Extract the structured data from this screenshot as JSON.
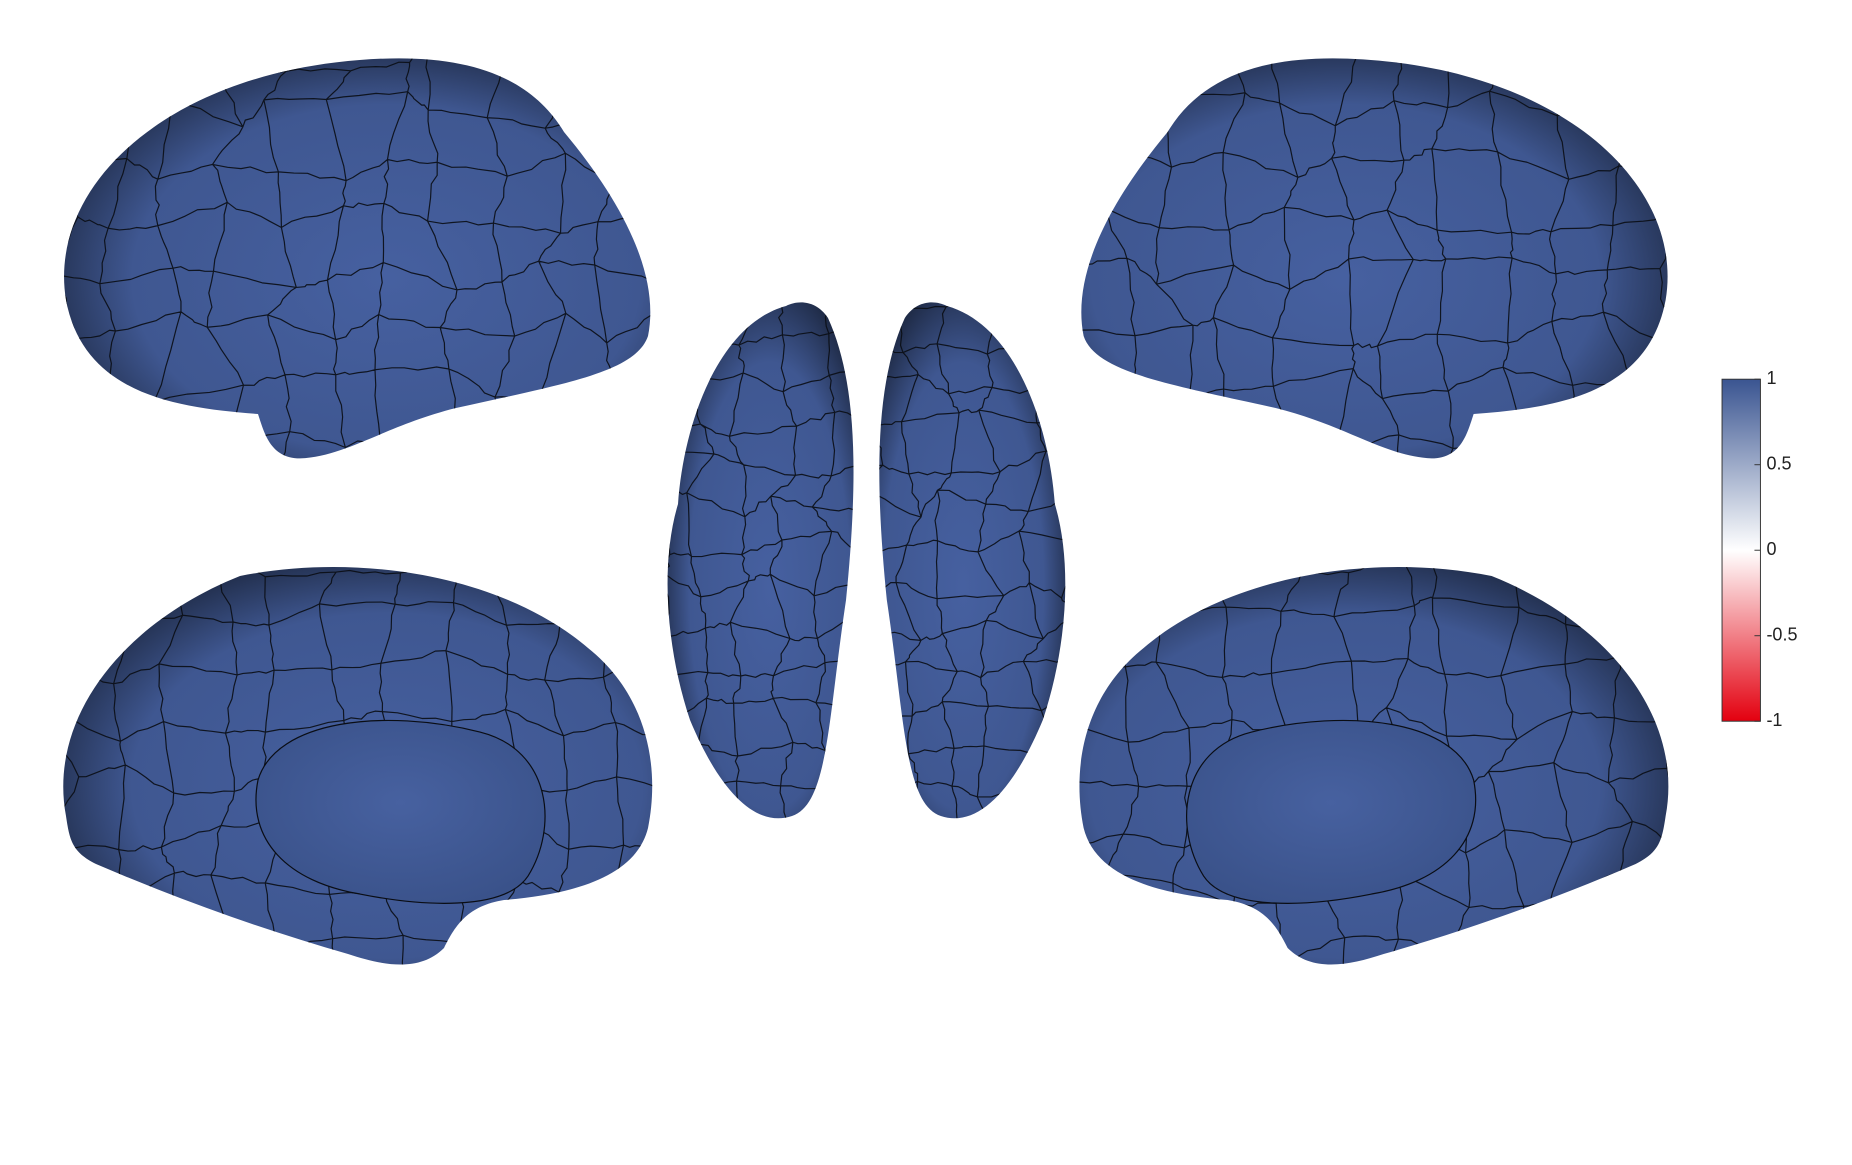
{
  "colorbar": {
    "lim": [
      -1,
      1
    ],
    "ticks": [
      1,
      0.5,
      0,
      -0.5,
      -1
    ],
    "colors": [
      "#e3000f",
      "#ffffff",
      "#3a5591"
    ]
  }
}
